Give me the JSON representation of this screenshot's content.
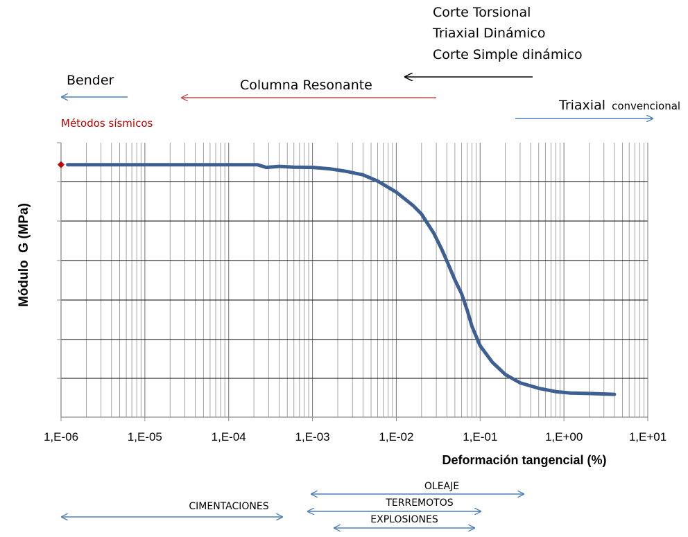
{
  "chart_data": {
    "type": "line",
    "x_scale": "log",
    "xlim": [
      1e-06,
      10
    ],
    "x_tick_labels": [
      "1,E-06",
      "1,E-05",
      "1,E-04",
      "1,E-03",
      "1,E-02",
      "1,E-01",
      "1,E+00",
      "1,E+01"
    ],
    "xlabel": "Deformación tangencial (%)",
    "ylabel": "Módulo  G (MPa)",
    "y_tick_labels_shown": false,
    "ylim": [
      0,
      100
    ],
    "grid": true,
    "series": [
      {
        "color": "#3d5f91",
        "points": [
          [
            1.2e-06,
            92
          ],
          [
            1e-05,
            92
          ],
          [
            0.0001,
            92
          ],
          [
            0.00022,
            92
          ],
          [
            0.00028,
            91
          ],
          [
            0.0004,
            91.4
          ],
          [
            0.0006,
            91.1
          ],
          [
            0.001,
            91
          ],
          [
            0.0016,
            90.5
          ],
          [
            0.0025,
            89.6
          ],
          [
            0.004,
            88.3
          ],
          [
            0.006,
            86
          ],
          [
            0.01,
            82
          ],
          [
            0.016,
            77
          ],
          [
            0.02,
            74
          ],
          [
            0.028,
            67
          ],
          [
            0.035,
            61
          ],
          [
            0.04,
            57
          ],
          [
            0.05,
            50
          ],
          [
            0.06,
            45
          ],
          [
            0.07,
            39
          ],
          [
            0.08,
            33
          ],
          [
            0.1,
            26
          ],
          [
            0.14,
            20
          ],
          [
            0.2,
            15.5
          ],
          [
            0.3,
            12.5
          ],
          [
            0.5,
            10.5
          ],
          [
            0.8,
            9.3
          ],
          [
            1.2,
            8.8
          ],
          [
            2,
            8.6
          ],
          [
            4,
            8.3
          ]
        ]
      }
    ],
    "marker": {
      "x": 1e-06,
      "y": 92,
      "shape": "diamond",
      "color": "#c00000"
    }
  },
  "annotations": {
    "bender": "Bender",
    "columna_resonante": "Columna Resonante",
    "dynamic_tests": [
      "Corte Torsional",
      "Triaxial Dinámico",
      "Corte Simple dinámico"
    ],
    "triaxial": "Triaxial",
    "convencional": "convencional",
    "metodos_sismicos": "Métodos sísmicos",
    "cimentaciones": "CIMENTACIONES",
    "oleaje": "OLEAJE",
    "terremotos": "TERREMOTOS",
    "explosiones": "EXPLOSIONES"
  },
  "colors": {
    "blue_arrow": "#4a7ebb",
    "red_arrow": "#c0504d",
    "black_arrow": "#000000",
    "red_text": "#c00000",
    "curve": "#3d5f91"
  }
}
